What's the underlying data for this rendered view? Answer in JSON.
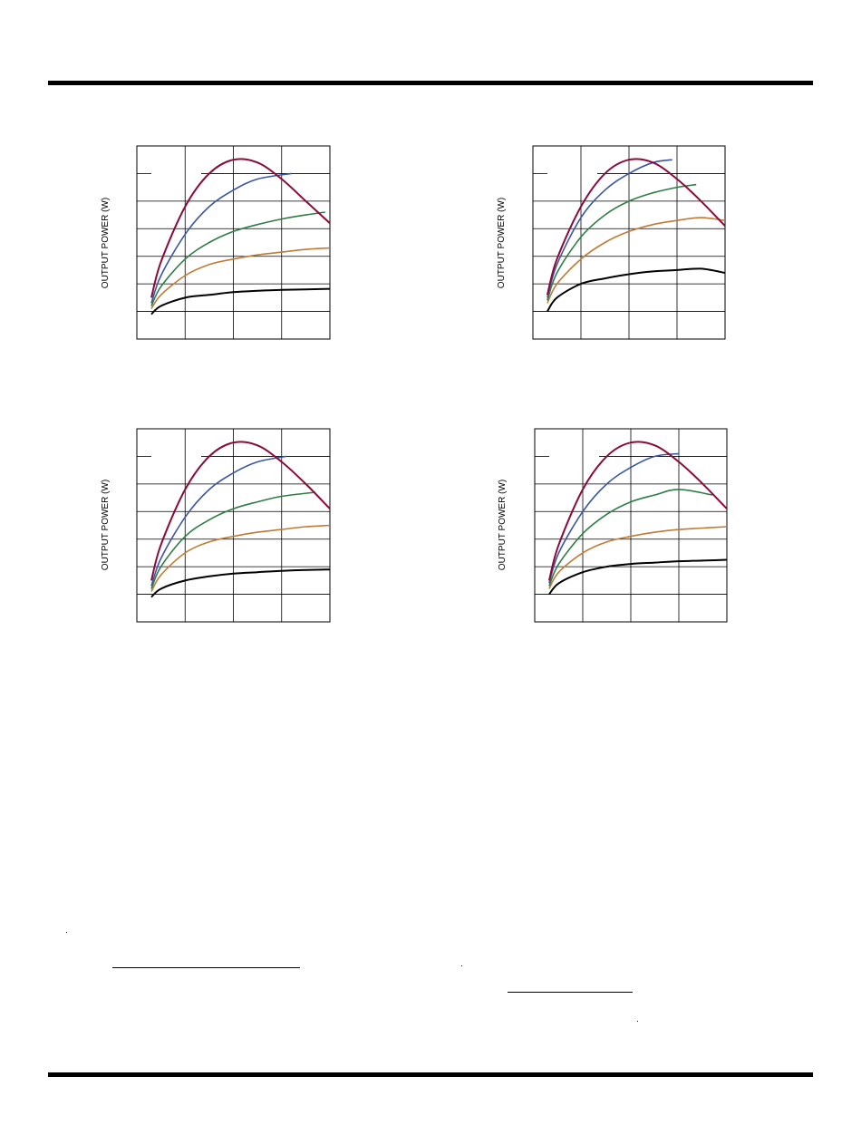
{
  "colors": {
    "rule": "#000000",
    "frame": "#000000",
    "series": [
      "#000000",
      "#c07a35",
      "#2e7d45",
      "#3a56a5",
      "#8b0a3a"
    ]
  },
  "chart_data": [
    {
      "type": "line",
      "title": "",
      "xlabel": "",
      "ylabel": "OUTPUT POWER (W)",
      "xlim": [
        0,
        4
      ],
      "ylim": [
        0,
        7
      ],
      "grid": true,
      "series": [
        {
          "x": [
            0.3,
            0.5,
            1,
            1.5,
            2,
            2.5,
            3,
            3.5,
            4
          ],
          "values": [
            0.9,
            1.2,
            1.5,
            1.6,
            1.7,
            1.75,
            1.78,
            1.8,
            1.82
          ]
        },
        {
          "x": [
            0.3,
            0.5,
            1,
            1.5,
            2,
            2.5,
            3,
            3.5,
            4
          ],
          "values": [
            1.1,
            1.6,
            2.3,
            2.7,
            2.9,
            3.05,
            3.15,
            3.25,
            3.3
          ]
        },
        {
          "x": [
            0.3,
            0.5,
            1,
            1.5,
            2,
            2.5,
            3,
            3.5,
            3.9
          ],
          "values": [
            1.2,
            1.9,
            2.9,
            3.5,
            3.9,
            4.15,
            4.35,
            4.5,
            4.6
          ]
        },
        {
          "x": [
            0.3,
            0.5,
            1,
            1.5,
            2,
            2.5,
            3.2
          ],
          "values": [
            1.3,
            2.3,
            3.8,
            4.8,
            5.4,
            5.8,
            6.0
          ]
        },
        {
          "x": [
            0.3,
            0.5,
            1,
            1.5,
            2,
            2.5,
            3,
            3.5,
            4
          ],
          "values": [
            1.5,
            2.8,
            4.8,
            6.0,
            6.5,
            6.4,
            5.8,
            5.0,
            4.2
          ]
        }
      ]
    },
    {
      "type": "line",
      "title": "",
      "xlabel": "",
      "ylabel": "OUTPUT POWER (W)",
      "xlim": [
        0,
        4
      ],
      "ylim": [
        0,
        7
      ],
      "grid": true,
      "series": [
        {
          "x": [
            0.3,
            0.5,
            1,
            1.5,
            2,
            2.5,
            3,
            3.5,
            4
          ],
          "values": [
            1.0,
            1.5,
            2.0,
            2.2,
            2.35,
            2.45,
            2.5,
            2.55,
            2.4
          ]
        },
        {
          "x": [
            0.3,
            0.5,
            1,
            1.5,
            2,
            2.5,
            3,
            3.5,
            4
          ],
          "values": [
            1.3,
            2.0,
            2.9,
            3.5,
            3.9,
            4.15,
            4.3,
            4.4,
            4.3
          ]
        },
        {
          "x": [
            0.3,
            0.5,
            1,
            1.5,
            2,
            2.5,
            3,
            3.4
          ],
          "values": [
            1.4,
            2.4,
            3.7,
            4.5,
            5.0,
            5.3,
            5.5,
            5.6
          ]
        },
        {
          "x": [
            0.3,
            0.5,
            1,
            1.5,
            2,
            2.5,
            2.9
          ],
          "values": [
            1.5,
            2.7,
            4.4,
            5.4,
            6.0,
            6.4,
            6.5
          ]
        },
        {
          "x": [
            0.3,
            0.5,
            1,
            1.5,
            2,
            2.5,
            3,
            3.5,
            4
          ],
          "values": [
            1.6,
            2.9,
            4.8,
            6.0,
            6.5,
            6.4,
            5.8,
            5.0,
            4.1
          ]
        }
      ]
    },
    {
      "type": "line",
      "title": "",
      "xlabel": "",
      "ylabel": "OUTPUT POWER (W)",
      "xlim": [
        0,
        4
      ],
      "ylim": [
        0,
        7
      ],
      "grid": true,
      "series": [
        {
          "x": [
            0.3,
            0.5,
            1,
            1.5,
            2,
            2.5,
            3,
            3.5,
            4
          ],
          "values": [
            0.9,
            1.2,
            1.5,
            1.65,
            1.75,
            1.8,
            1.85,
            1.88,
            1.9
          ]
        },
        {
          "x": [
            0.3,
            0.5,
            1,
            1.5,
            2,
            2.5,
            3,
            3.5,
            4
          ],
          "values": [
            1.1,
            1.7,
            2.5,
            2.9,
            3.1,
            3.25,
            3.35,
            3.45,
            3.5
          ]
        },
        {
          "x": [
            0.3,
            0.5,
            1,
            1.5,
            2,
            2.5,
            3,
            3.7
          ],
          "values": [
            1.2,
            2.0,
            3.1,
            3.7,
            4.1,
            4.35,
            4.55,
            4.7
          ]
        },
        {
          "x": [
            0.3,
            0.5,
            1,
            1.5,
            2,
            2.5,
            3.1
          ],
          "values": [
            1.3,
            2.3,
            3.8,
            4.8,
            5.4,
            5.8,
            6.0
          ]
        },
        {
          "x": [
            0.3,
            0.5,
            1,
            1.5,
            2,
            2.5,
            3,
            3.5,
            4
          ],
          "values": [
            1.5,
            2.8,
            4.8,
            6.0,
            6.5,
            6.4,
            5.8,
            5.0,
            4.1
          ]
        }
      ]
    },
    {
      "type": "line",
      "title": "",
      "xlabel": "",
      "ylabel": "OUTPUT POWER (W)",
      "xlim": [
        0,
        4
      ],
      "ylim": [
        0,
        7
      ],
      "grid": true,
      "series": [
        {
          "x": [
            0.3,
            0.5,
            1,
            1.5,
            2,
            2.5,
            3,
            3.5,
            4
          ],
          "values": [
            1.0,
            1.4,
            1.8,
            2.0,
            2.1,
            2.15,
            2.2,
            2.22,
            2.25
          ]
        },
        {
          "x": [
            0.3,
            0.5,
            1,
            1.5,
            2,
            2.5,
            3,
            3.5,
            4
          ],
          "values": [
            1.2,
            1.8,
            2.5,
            2.9,
            3.1,
            3.25,
            3.35,
            3.4,
            3.45
          ]
        },
        {
          "x": [
            0.3,
            0.5,
            1,
            1.5,
            2,
            2.5,
            3,
            3.7
          ],
          "values": [
            1.3,
            2.1,
            3.2,
            3.9,
            4.35,
            4.6,
            4.8,
            4.6
          ]
        },
        {
          "x": [
            0.3,
            0.5,
            1,
            1.5,
            2,
            2.5,
            3
          ],
          "values": [
            1.4,
            2.5,
            4.0,
            5.0,
            5.6,
            6.0,
            6.1
          ]
        },
        {
          "x": [
            0.3,
            0.5,
            1,
            1.5,
            2,
            2.5,
            3,
            3.5,
            4
          ],
          "values": [
            1.5,
            2.8,
            4.8,
            6.0,
            6.5,
            6.4,
            5.8,
            5.0,
            4.1
          ]
        }
      ]
    }
  ]
}
